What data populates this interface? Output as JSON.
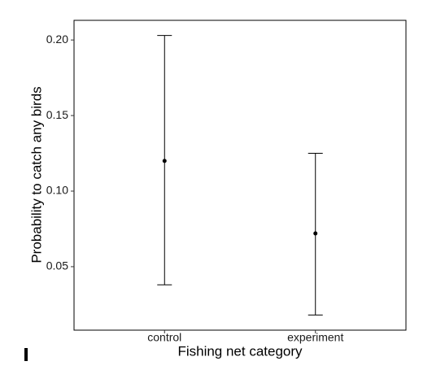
{
  "chart_data": {
    "type": "errorbar",
    "x_label": "Fishing net category",
    "y_label": "Probability to catch any birds",
    "categories": [
      "control",
      "experiment"
    ],
    "values": [
      0.12,
      0.072
    ],
    "lower": [
      0.038,
      0.018
    ],
    "upper": [
      0.203,
      0.125
    ],
    "color": "#000000",
    "ylim": [
      0.008,
      0.213
    ],
    "yticks": [
      {
        "value": 0.05,
        "label": "0.05"
      },
      {
        "value": 0.1,
        "label": "0.10"
      },
      {
        "value": 0.15,
        "label": "0.15"
      },
      {
        "value": 0.2,
        "label": "0.20"
      }
    ]
  }
}
